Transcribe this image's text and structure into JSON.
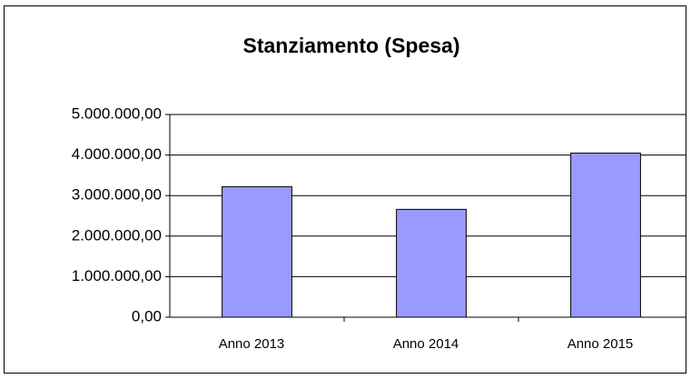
{
  "chart_data": {
    "type": "bar",
    "title": "Stanziamento (Spesa)",
    "categories": [
      "Anno 2013",
      "Anno 2014",
      "Anno 2015"
    ],
    "values": [
      3220000,
      2660000,
      4050000
    ],
    "color": "#9999ff",
    "ylim": [
      0,
      5000000
    ],
    "yticks": [
      {
        "value": 0,
        "label": "0,00"
      },
      {
        "value": 1000000,
        "label": "1.000.000,00"
      },
      {
        "value": 2000000,
        "label": "2.000.000,00"
      },
      {
        "value": 3000000,
        "label": "3.000.000,00"
      },
      {
        "value": 4000000,
        "label": "4.000.000,00"
      },
      {
        "value": 5000000,
        "label": "5.000.000,00"
      }
    ],
    "grid": true
  }
}
